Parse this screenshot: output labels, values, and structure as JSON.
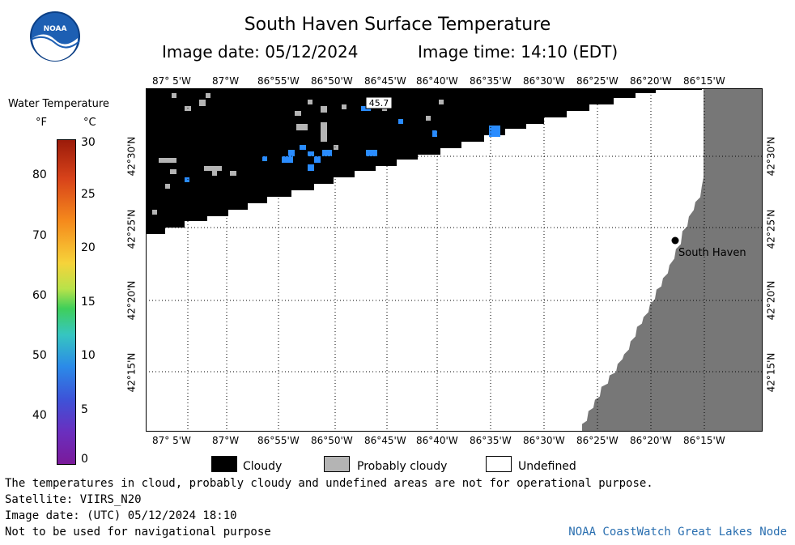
{
  "header": {
    "title": "South Haven Surface Temperature",
    "image_date": "Image date: 05/12/2024",
    "image_time": "Image time: 14:10 (EDT)"
  },
  "map": {
    "lon_labels": [
      "87° 5'W",
      "87°W",
      "86°55'W",
      "86°50'W",
      "86°45'W",
      "86°40'W",
      "86°35'W",
      "86°30'W",
      "86°25'W",
      "86°20'W",
      "86°15'W"
    ],
    "lat_labels": [
      "42°30'N",
      "42°25'N",
      "42°20'N",
      "42°15'N"
    ],
    "city": "South Haven",
    "temp_label": "45.7",
    "colors": {
      "cloud": "#000000",
      "probably_cloudy": "#b4b4b4",
      "land": "#777777",
      "water_cold": "#2a8cff",
      "undefined": "#ffffff"
    }
  },
  "legend": {
    "title": "Water Temperature",
    "unit_f": "°F",
    "unit_c": "°C",
    "f_ticks": [
      "80",
      "70",
      "60",
      "50",
      "40"
    ],
    "c_ticks": [
      "30",
      "25",
      "20",
      "15",
      "10",
      "5",
      "0"
    ]
  },
  "key": {
    "cloudy": "Cloudy",
    "probably_cloudy": "Probably cloudy",
    "undefined": "Undefined"
  },
  "footer": {
    "disclaimer": "The temperatures in cloud, probably cloudy and undefined areas are not for operational purpose.",
    "satellite": "Satellite: VIIRS_N20",
    "utc_date": "Image date: (UTC) 05/12/2024  18:10",
    "nav_warning": "Not to be used for navigational purpose",
    "credit": "NOAA CoastWatch Great Lakes Node"
  }
}
